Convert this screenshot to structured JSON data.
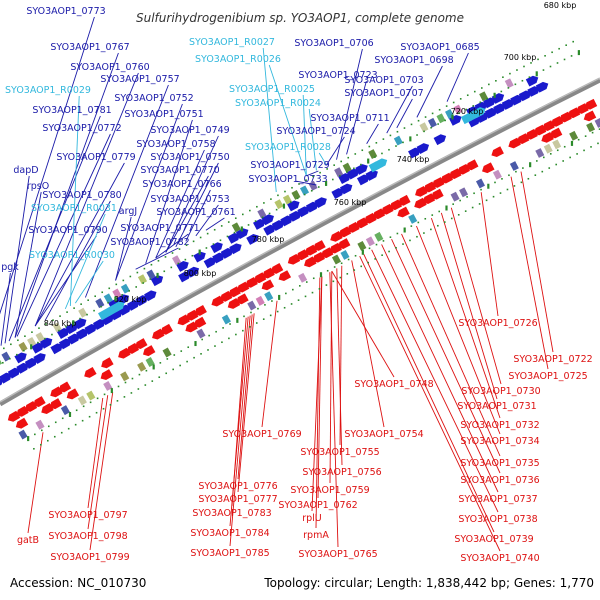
{
  "title": "Sulfurihydrogenibium sp. YO3AOP1, complete genome",
  "footer": {
    "accession": "Accession: NC_010730",
    "summary": "Topology: circular; Length: 1,838,442 bp; Genes: 1,770"
  },
  "colors": {
    "forward_label": "#1a1aa8",
    "rna_label": "#33b8dd",
    "reverse_label": "#dd1111",
    "backbone": "#888888",
    "forward_arrow": "#1a1acc",
    "reverse_arrow": "#ee1111",
    "rna_arrow": "#33b8dd"
  },
  "ticks": [
    {
      "label": "680 kbp"
    },
    {
      "label": "700 kbp"
    },
    {
      "label": "720 kbp"
    },
    {
      "label": "740 kbp"
    },
    {
      "label": "760 kbp"
    },
    {
      "label": "780 kbp"
    },
    {
      "label": "800 kbp"
    },
    {
      "label": "820 kbp"
    },
    {
      "label": "840 kbp"
    }
  ],
  "forward_labels": [
    "SYO3AOP1_0773",
    "SYO3AOP1_0767",
    "SYO3AOP1_0760",
    "SYO3AOP1_0757",
    "SYO3AOP1_0752",
    "SYO3AOP1_0781",
    "SYO3AOP1_0751",
    "SYO3AOP1_0772",
    "SYO3AOP1_0749",
    "SYO3AOP1_0758",
    "SYO3AOP1_0779",
    "SYO3AOP1_0750",
    "dapD",
    "SYO3AOP1_0770",
    "rpsO",
    "SYO3AOP1_0766",
    "SYO3AOP1_0780",
    "SYO3AOP1_0753",
    "argJ",
    "SYO3AOP1_0761",
    "SYO3AOP1_0771",
    "SYO3AOP1_0790",
    "SYO3AOP1_0782",
    "pgk",
    "SYO3AOP1_0706",
    "SYO3AOP1_0685",
    "SYO3AOP1_0698",
    "SYO3AOP1_0723",
    "SYO3AOP1_0703",
    "SYO3AOP1_0707",
    "SYO3AOP1_0711",
    "SYO3AOP1_0724",
    "SYO3AOP1_0729",
    "SYO3AOP1_0733"
  ],
  "rna_labels": [
    "SYO3AOP1_R0027",
    "SYO3AOP1_R0026",
    "SYO3AOP1_R0029",
    "SYO3AOP1_R0025",
    "SYO3AOP1_R0024",
    "SYO3AOP1_R0028",
    "SYO3AOP1_R0031",
    "SYO3AOP1_R0030"
  ],
  "reverse_labels": [
    "SYO3AOP1_0726",
    "SYO3AOP1_0722",
    "SYO3AOP1_0725",
    "SYO3AOP1_0748",
    "SYO3AOP1_0730",
    "SYO3AOP1_0731",
    "SYO3AOP1_0732",
    "SYO3AOP1_0769",
    "SYO3AOP1_0754",
    "SYO3AOP1_0734",
    "SYO3AOP1_0755",
    "SYO3AOP1_0735",
    "SYO3AOP1_0756",
    "SYO3AOP1_0736",
    "SYO3AOP1_0776",
    "SYO3AOP1_0759",
    "SYO3AOP1_0777",
    "SYO3AOP1_0737",
    "SYO3AOP1_0797",
    "SYO3AOP1_0783",
    "SYO3AOP1_0762",
    "SYO3AOP1_0738",
    "rplU",
    "gatB",
    "SYO3AOP1_0798",
    "SYO3AOP1_0784",
    "rpmA",
    "SYO3AOP1_0739",
    "SYO3AOP1_0799",
    "SYO3AOP1_0785",
    "SYO3AOP1_0765",
    "SYO3AOP1_0740"
  ]
}
